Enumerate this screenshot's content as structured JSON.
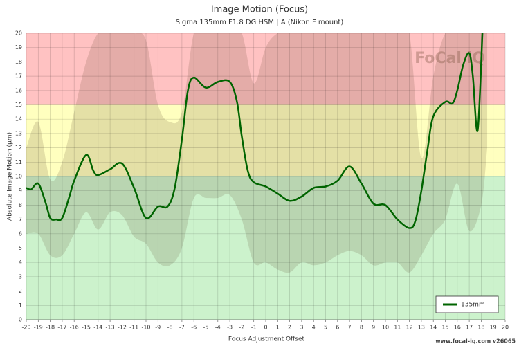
{
  "chart_data": {
    "type": "line",
    "title": "Image Motion (Focus)",
    "subtitle": "Sigma 135mm F1.8 DG HSM | A (Nikon F mount)",
    "x_label": "Focus Adjustment Offset",
    "y_label": "Absolute Image Motion (µm)",
    "watermark": "FoCal iQ",
    "footer": "www.focal-iq.com  v26065",
    "xlim": [
      -20,
      20
    ],
    "ylim": [
      0,
      20
    ],
    "xticks": [
      -20,
      -19,
      -18,
      -17,
      -16,
      -15,
      -14,
      -13,
      -12,
      -11,
      -10,
      -9,
      -8,
      -7,
      -6,
      -5,
      -4,
      -3,
      -2,
      -1,
      0,
      1,
      2,
      3,
      4,
      5,
      6,
      7,
      8,
      9,
      10,
      11,
      12,
      13,
      14,
      15,
      16,
      17,
      18,
      19,
      20
    ],
    "yticks": [
      0,
      1,
      2,
      3,
      4,
      5,
      6,
      7,
      8,
      9,
      10,
      11,
      12,
      13,
      14,
      15,
      16,
      17,
      18,
      19,
      20
    ],
    "grid": true,
    "legend": "bottom-right",
    "zones": [
      {
        "from": 0,
        "to": 10,
        "color": "#ccf2cc"
      },
      {
        "from": 10,
        "to": 15,
        "color": "#ffffbf"
      },
      {
        "from": 15,
        "to": 20,
        "color": "#ffc2c2"
      }
    ],
    "envelope": {
      "color": "rgba(90,60,40,0.16)",
      "x": [
        -20,
        -19,
        -18,
        -17,
        -16,
        -15,
        -14,
        -13,
        -12,
        -11,
        -10,
        -9,
        -8,
        -7,
        -6,
        -5,
        -4,
        -3,
        -2,
        -1,
        0,
        1,
        2,
        3,
        4,
        5,
        6,
        7,
        8,
        9,
        10,
        11,
        12,
        13,
        14,
        15,
        16,
        17,
        18,
        18.5
      ],
      "upper": [
        12,
        13.8,
        9.8,
        11,
        14.5,
        18,
        20,
        20,
        20,
        20,
        19.5,
        15,
        13.8,
        14.5,
        20,
        20,
        20,
        20,
        20,
        16.5,
        19,
        20,
        20,
        20,
        20,
        20,
        20,
        20,
        20,
        20,
        20,
        20,
        20,
        11.3,
        17,
        20,
        20,
        20,
        20,
        20
      ],
      "lower": [
        6,
        6,
        4.5,
        4.5,
        6,
        7.5,
        6.3,
        7.5,
        7.3,
        5.8,
        5.3,
        4,
        3.8,
        5,
        8.5,
        8.5,
        8.5,
        8.7,
        7,
        4,
        4,
        3.5,
        3.3,
        4,
        3.8,
        4,
        4.5,
        4.8,
        4.5,
        3.8,
        4,
        4,
        3.3,
        4.5,
        6,
        7,
        9.5,
        6.2,
        8,
        12
      ]
    },
    "x": [
      -20,
      -19.6,
      -19,
      -18.4,
      -18,
      -17.5,
      -17,
      -16.4,
      -16,
      -15,
      -14.4,
      -14,
      -13,
      -12,
      -11,
      -10,
      -9,
      -8.2,
      -7.6,
      -7,
      -6.5,
      -6,
      -5,
      -4,
      -3,
      -2.4,
      -2,
      -1.5,
      -1,
      0,
      1,
      2,
      3,
      4,
      5,
      6,
      7,
      8,
      9,
      10,
      11,
      12,
      12.5,
      13,
      13.5,
      14,
      15,
      15.6,
      16,
      16.5,
      17,
      17.3,
      17.7,
      18.1
    ],
    "series": [
      {
        "name": "135mm",
        "color": "#006400",
        "values": [
          9.2,
          9.1,
          9.5,
          8.2,
          7.1,
          7.0,
          7.1,
          8.6,
          9.7,
          11.5,
          10.4,
          10.1,
          10.5,
          10.9,
          9.2,
          7.1,
          7.9,
          7.9,
          9.2,
          12.6,
          16.0,
          16.9,
          16.2,
          16.6,
          16.6,
          15.2,
          12.8,
          10.4,
          9.6,
          9.3,
          8.8,
          8.3,
          8.6,
          9.2,
          9.3,
          9.7,
          10.7,
          9.5,
          8.1,
          8.0,
          7.0,
          6.4,
          6.9,
          9.0,
          11.8,
          14.2,
          15.2,
          15.1,
          16.0,
          17.8,
          18.6,
          17.0,
          13.2,
          20
        ]
      }
    ]
  }
}
